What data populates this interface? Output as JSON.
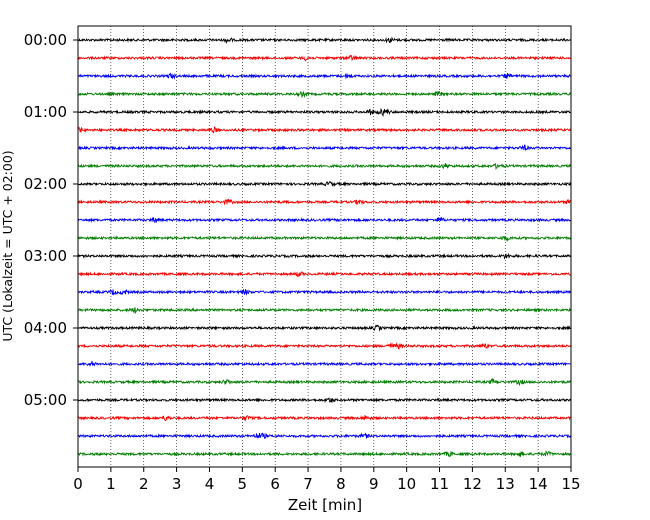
{
  "chart_data": {
    "type": "line",
    "title": "",
    "xlabel": "Zeit  [min]",
    "ylabel": "UTC (Lokalzeit = UTC + 02:00)",
    "xlim": [
      0,
      15
    ],
    "x_ticks": [
      "0",
      "1",
      "2",
      "3",
      "4",
      "5",
      "6",
      "7",
      "8",
      "9",
      "10",
      "11",
      "12",
      "13",
      "14",
      "15"
    ],
    "y_tick_labels": [
      "00:00",
      "01:00",
      "02:00",
      "03:00",
      "04:00",
      "05:00"
    ],
    "grid": "vertical dotted lines at each minute",
    "trace_colors_cycle": [
      "#000000",
      "#ff0000",
      "#0000ff",
      "#007f00"
    ],
    "trace_count": 24,
    "minutes_per_trace": 15,
    "series_description": "seismic helicorder; one trace per 15 minutes from 00:00 to 06:00 UTC"
  }
}
